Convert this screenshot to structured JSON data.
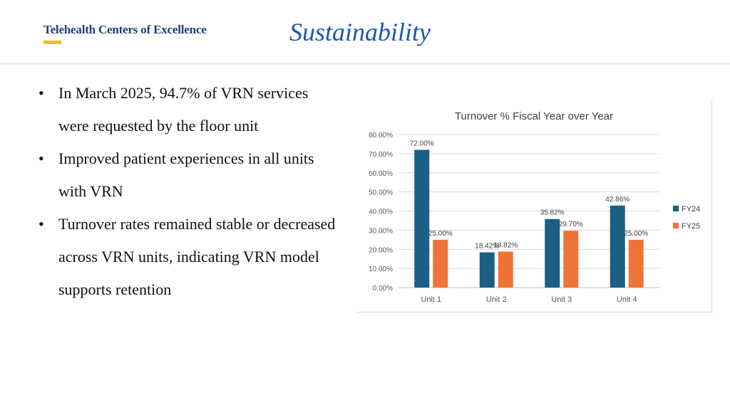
{
  "header": {
    "org_name": "Telehealth Centers of Excellence",
    "title": "Sustainability",
    "accent_color": "#f2c01c",
    "title_color": "#1e56b4"
  },
  "bullets": [
    "In March 2025, 94.7% of VRN services were requested by the floor unit",
    "Improved patient experiences in all units with VRN",
    "Turnover rates remained stable or decreased across VRN units, indicating VRN model supports retention"
  ],
  "chart_data": {
    "type": "bar",
    "title": "Turnover % Fiscal Year over Year",
    "categories": [
      "Unit 1",
      "Unit 2",
      "Unit 3",
      "Unit 4"
    ],
    "series": [
      {
        "name": "FY24",
        "color": "#1b5f85",
        "values": [
          72.0,
          18.42,
          35.82,
          42.86
        ],
        "labels": [
          "72.00%",
          "18.42%",
          "35.82%",
          "42.86%"
        ]
      },
      {
        "name": "FY25",
        "color": "#ed7437",
        "values": [
          25.0,
          18.82,
          29.7,
          25.0
        ],
        "labels": [
          "25.00%",
          "18.82%",
          "29.70%",
          "25.00%"
        ]
      }
    ],
    "ylim": [
      0,
      80
    ],
    "yticks": [
      "0.00%",
      "10.00%",
      "20.00%",
      "30.00%",
      "40.00%",
      "50.00%",
      "60.00%",
      "70.00%",
      "80.00%"
    ],
    "xlabel": "",
    "ylabel": "",
    "grid": true,
    "legend_position": "right"
  }
}
